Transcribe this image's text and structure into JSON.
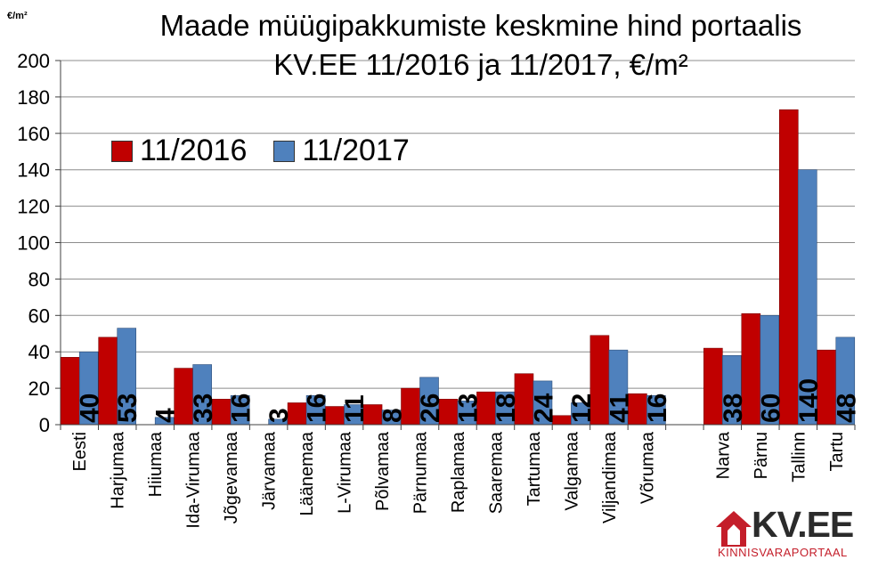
{
  "chart_data": {
    "type": "bar",
    "title_line1": "Maade müügipakkumiste keskmine hind portaalis",
    "title_line2": "KV.EE 11/2016 ja 11/2017, €/m²",
    "ylabel": "€/m²",
    "ylim": [
      0,
      200
    ],
    "yticks": [
      0,
      20,
      40,
      60,
      80,
      100,
      120,
      140,
      160,
      180,
      200
    ],
    "grid": true,
    "legend_position": "upper-left",
    "categories": [
      "Eesti",
      "Harjumaa",
      "Hiiumaa",
      "Ida-Virumaa",
      "Jõgevamaa",
      "Järvamaa",
      "Läänemaa",
      "L-Virumaa",
      "Põlvamaa",
      "Pärnumaa",
      "Raplamaa",
      "Saaremaa",
      "Tartumaa",
      "Valgamaa",
      "Viljandimaa",
      "Võrumaa",
      "Narva",
      "Pärnu",
      "Tallinn",
      "Tartu"
    ],
    "series": [
      {
        "name": "11/2016",
        "color": "#c00000",
        "values": [
          37,
          48,
          0,
          31,
          14,
          0,
          12,
          10,
          11,
          20,
          14,
          18,
          28,
          5,
          49,
          17,
          42,
          61,
          173,
          41
        ]
      },
      {
        "name": "11/2017",
        "color": "#4f81bd",
        "values": [
          40,
          53,
          4,
          33,
          16,
          3,
          16,
          11,
          8,
          26,
          13,
          18,
          24,
          12,
          41,
          16,
          38,
          60,
          140,
          48
        ]
      }
    ],
    "data_labels": [
      "40",
      "53",
      "4",
      "33",
      "16",
      "3",
      "16",
      "11",
      "8",
      "26",
      "13",
      "18",
      "24",
      "12",
      "41",
      "16",
      "38",
      "60",
      "140",
      "48"
    ]
  },
  "logo": {
    "text": "KV.EE",
    "subtitle": "KINNISVARAPORTAAL"
  }
}
